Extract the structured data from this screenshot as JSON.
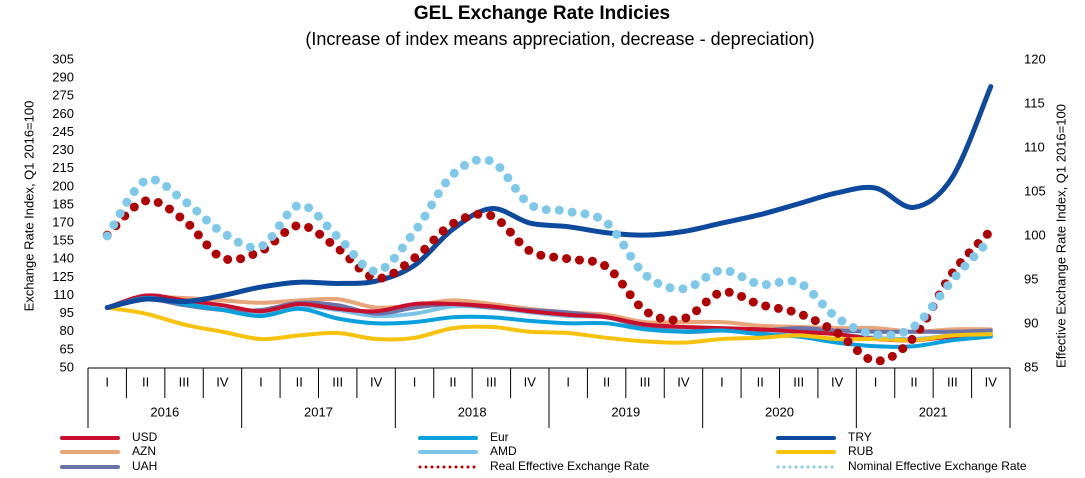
{
  "chart_data": {
    "type": "line",
    "title": "GEL Exchange Rate Indicies",
    "subtitle": "(Increase of index means appreciation, decrease - depreciation)",
    "y_label": "Exchange Rate Index, Q1 2016=100",
    "y2_label": "Effective Exchange Rate Index, Q1 2016=100",
    "categories": [
      "I",
      "II",
      "III",
      "IV",
      "I",
      "II",
      "III",
      "IV",
      "I",
      "II",
      "III",
      "IV",
      "I",
      "II",
      "III",
      "IV",
      "I",
      "II",
      "III",
      "IV",
      "I",
      "II",
      "III",
      "IV"
    ],
    "years": [
      "2016",
      "2017",
      "2018",
      "2019",
      "2020",
      "2021"
    ],
    "ylim": [
      50,
      305
    ],
    "yticks": [
      50,
      65,
      80,
      95,
      110,
      125,
      140,
      155,
      170,
      185,
      200,
      215,
      230,
      245,
      260,
      275,
      290,
      305
    ],
    "y2lim": [
      85,
      120
    ],
    "y2ticks": [
      85,
      90,
      95,
      100,
      105,
      110,
      115,
      120
    ],
    "series": [
      {
        "name": "USD",
        "color": "#c8102e",
        "values": [
          100,
          110,
          106,
          102,
          97,
          103,
          99,
          97,
          103,
          103,
          101,
          97,
          94,
          92,
          86,
          84,
          83,
          82,
          80,
          78,
          74,
          73,
          76,
          77
        ]
      },
      {
        "name": "Eur",
        "color": "#0aa0dc",
        "values": [
          100,
          108,
          103,
          98,
          93,
          99,
          91,
          87,
          88,
          92,
          92,
          89,
          87,
          87,
          82,
          80,
          81,
          78,
          76,
          71,
          68,
          68,
          73,
          76
        ]
      },
      {
        "name": "TRY",
        "color": "#0d4a9e",
        "values": [
          100,
          107,
          105,
          110,
          117,
          121,
          120,
          122,
          135,
          165,
          182,
          170,
          167,
          162,
          160,
          163,
          170,
          177,
          186,
          195,
          199,
          183,
          208,
          283
        ]
      },
      {
        "name": "AZN",
        "color": "#e8a57a",
        "values": [
          100,
          108,
          108,
          106,
          104,
          106,
          107,
          100,
          102,
          106,
          103,
          99,
          96,
          94,
          88,
          88,
          88,
          85,
          84,
          83,
          83,
          80,
          82,
          82
        ]
      },
      {
        "name": "AMD",
        "color": "#7cc3e8",
        "values": [
          100,
          109,
          106,
          99,
          94,
          101,
          98,
          93,
          95,
          101,
          100,
          96,
          93,
          92,
          85,
          82,
          82,
          80,
          80,
          78,
          75,
          74,
          77,
          79
        ]
      },
      {
        "name": "RUB",
        "color": "#f7c20c",
        "values": [
          100,
          95,
          86,
          80,
          74,
          77,
          79,
          74,
          75,
          83,
          84,
          80,
          79,
          75,
          72,
          71,
          74,
          75,
          77,
          74,
          74,
          73,
          77,
          78
        ]
      },
      {
        "name": "UAH",
        "color": "#6b73a8",
        "values": [
          100,
          107,
          102,
          98,
          98,
          104,
          102,
          95,
          100,
          103,
          100,
          98,
          96,
          92,
          84,
          80,
          81,
          81,
          83,
          81,
          80,
          80,
          80,
          81
        ]
      },
      {
        "name": "Real Effective Exchange Rate",
        "color": "#b00000",
        "axis": "y2",
        "dotted": true,
        "values": [
          100.1,
          104,
          101.8,
          97.5,
          98.3,
          101.2,
          98.6,
          95.2,
          97.5,
          101.4,
          102.3,
          98.3,
          97.4,
          96.5,
          91.5,
          90.6,
          93.6,
          92.2,
          91.2,
          89,
          85.8,
          88.5,
          95.8,
          100.6
        ]
      },
      {
        "name": "Nominal Effective Exchange Rate",
        "color": "#7ec8ea",
        "axis": "y2",
        "dotted": true,
        "values": [
          100,
          106.3,
          104,
          100.4,
          98.8,
          103.5,
          99.9,
          96,
          100.5,
          107,
          108.5,
          103.6,
          102.8,
          101.5,
          95.6,
          94,
          96.1,
          94.5,
          94.7,
          90.7,
          88.8,
          89.7,
          95,
          99.7
        ]
      }
    ]
  }
}
